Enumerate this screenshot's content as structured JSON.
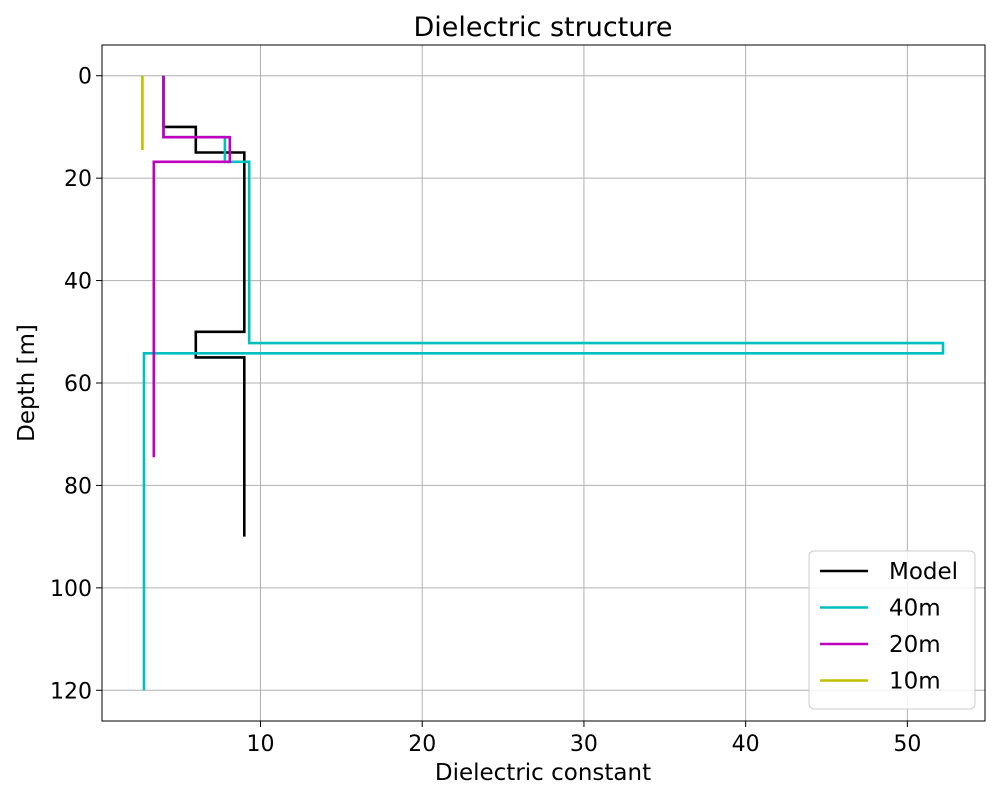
{
  "chart_data": {
    "type": "line",
    "title": "Dielectric structure",
    "xlabel": "Dielectric constant",
    "ylabel": "Depth [m]",
    "xlim": [
      0.2,
      54.8
    ],
    "ylim": [
      126,
      -6
    ],
    "y_inverted": true,
    "xticks": [
      10,
      20,
      30,
      40,
      50
    ],
    "yticks": [
      0,
      20,
      40,
      60,
      80,
      100,
      120
    ],
    "grid": true,
    "legend_position": "lower-right",
    "series": [
      {
        "name": "Model",
        "color": "#000000",
        "x": [
          4,
          4,
          6,
          6,
          9,
          9,
          6,
          6,
          9,
          9
        ],
        "y": [
          0,
          10,
          10,
          15,
          15,
          50,
          50,
          55,
          55,
          90
        ]
      },
      {
        "name": "40m",
        "color": "#00bfbf",
        "x": [
          4,
          4,
          7.8,
          7.8,
          9.3,
          9.3,
          52.2,
          52.2,
          2.8,
          2.8
        ],
        "y": [
          0,
          12,
          12,
          16.8,
          16.8,
          52.2,
          52.2,
          54.2,
          54.2,
          120
        ]
      },
      {
        "name": "20m",
        "color": "#bf00bf",
        "x": [
          4,
          4,
          8.1,
          8.1,
          3.4,
          3.4
        ],
        "y": [
          0,
          12,
          12,
          16.8,
          16.8,
          74.5
        ]
      },
      {
        "name": "10m",
        "color": "#bfbf00",
        "x": [
          2.7,
          2.7
        ],
        "y": [
          0,
          14.5
        ]
      }
    ]
  }
}
